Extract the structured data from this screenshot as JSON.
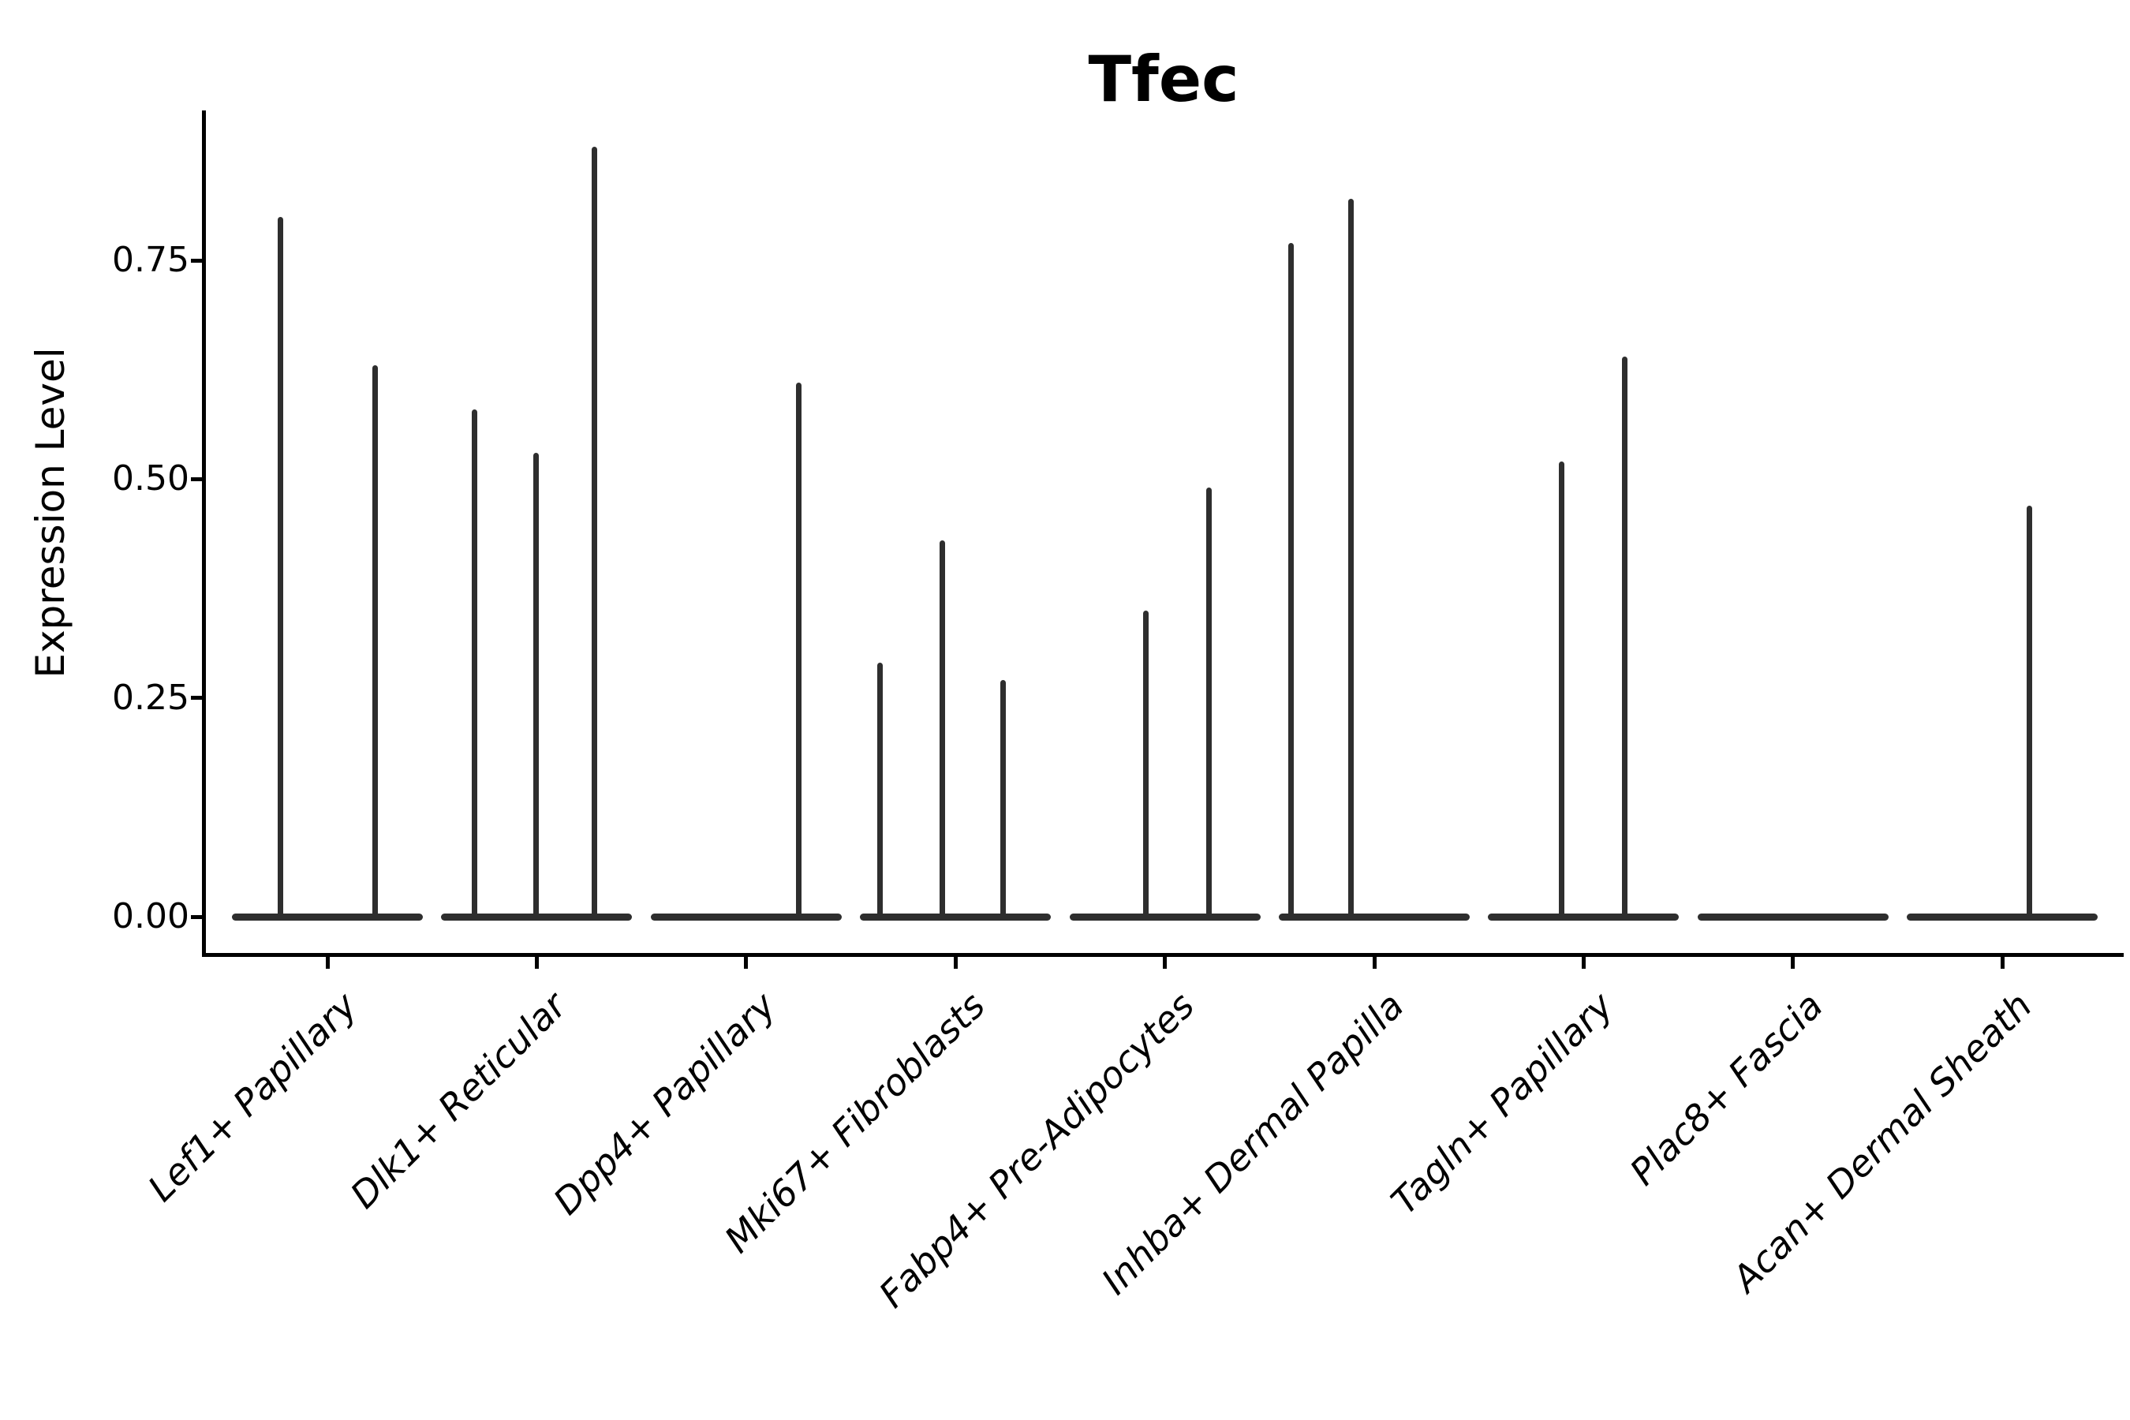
{
  "chart_data": {
    "type": "violin",
    "title": "Tfec",
    "xlabel": "",
    "ylabel": "Expression Level",
    "ylim": [
      0,
      0.92
    ],
    "grid": false,
    "legend": null,
    "yticks": [
      0.0,
      0.25,
      0.5,
      0.75
    ],
    "ytick_labels": [
      "0.00",
      "0.25",
      "0.50",
      "0.75"
    ],
    "categories": [
      "Lef1+ Papillary",
      "Dlk1+ Reticular",
      "Dpp4+ Papillary",
      "Mki67+ Fibroblasts",
      "Fabp4+ Pre-Adipocytes",
      "Inhba+ Dermal Papilla",
      "Tagln+ Papillary",
      "Plac8+ Fascia",
      "Acan+ Dermal Sheath"
    ],
    "violins": [
      {
        "category": "Lef1+ Papillary",
        "baseline_value": 0.0,
        "spikes": [
          {
            "offset_frac": -0.49,
            "value": 0.8
          },
          {
            "offset_frac": 0.5,
            "value": 0.63
          }
        ]
      },
      {
        "category": "Dlk1+ Reticular",
        "baseline_value": 0.0,
        "spikes": [
          {
            "offset_frac": -0.65,
            "value": 0.58
          },
          {
            "offset_frac": -0.01,
            "value": 0.53
          },
          {
            "offset_frac": 0.6,
            "value": 0.88
          }
        ]
      },
      {
        "category": "Dpp4+ Papillary",
        "baseline_value": 0.0,
        "spikes": [
          {
            "offset_frac": 0.55,
            "value": 0.61
          }
        ]
      },
      {
        "category": "Mki67+ Fibroblasts",
        "baseline_value": 0.0,
        "spikes": [
          {
            "offset_frac": -0.79,
            "value": 0.29
          },
          {
            "offset_frac": -0.14,
            "value": 0.43
          },
          {
            "offset_frac": 0.5,
            "value": 0.27
          }
        ]
      },
      {
        "category": "Fabp4+ Pre-Adipocytes",
        "baseline_value": 0.0,
        "spikes": [
          {
            "offset_frac": -0.2,
            "value": 0.35
          },
          {
            "offset_frac": 0.46,
            "value": 0.49
          }
        ]
      },
      {
        "category": "Inhba+ Dermal Papilla",
        "baseline_value": 0.0,
        "spikes": [
          {
            "offset_frac": -0.87,
            "value": 0.77
          },
          {
            "offset_frac": -0.24,
            "value": 0.82
          }
        ]
      },
      {
        "category": "Tagln+ Papillary",
        "baseline_value": 0.0,
        "spikes": [
          {
            "offset_frac": -0.23,
            "value": 0.52
          },
          {
            "offset_frac": 0.43,
            "value": 0.64
          }
        ]
      },
      {
        "category": "Plac8+ Fascia",
        "baseline_value": 0.0,
        "spikes": []
      },
      {
        "category": "Acan+ Dermal Sheath",
        "baseline_value": 0.0,
        "spikes": [
          {
            "offset_frac": 0.28,
            "value": 0.47
          }
        ]
      }
    ],
    "colors": {
      "violin": "#2e2e2e",
      "axis": "#000000",
      "text": "#000000",
      "background": "#ffffff"
    }
  }
}
